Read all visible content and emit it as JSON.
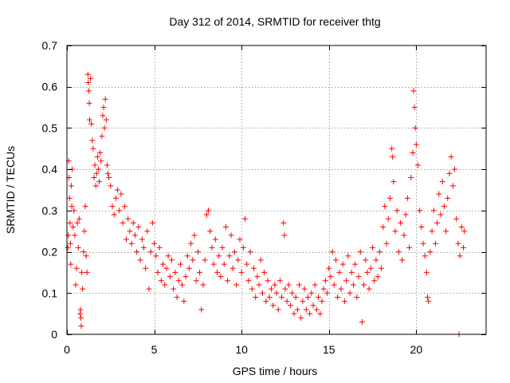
{
  "chart_data": {
    "type": "scatter",
    "title": "Day 312 of 2014, SRMTID for receiver thtg",
    "xlabel": "GPS time / hours",
    "ylabel": "SRMTID / TECUs",
    "xlim": [
      0,
      24
    ],
    "ylim": [
      0,
      0.7
    ],
    "xticks": [
      0,
      5,
      10,
      15,
      20
    ],
    "yticks": [
      0,
      0.1,
      0.2,
      0.3,
      0.4,
      0.5,
      0.6,
      0.7
    ],
    "grid": true,
    "marker": "plus",
    "color": "#ff0000",
    "series": [
      {
        "name": "SRMTID",
        "points": [
          [
            0.05,
            0.21
          ],
          [
            0.08,
            0.24
          ],
          [
            0.1,
            0.42
          ],
          [
            0.12,
            0.38
          ],
          [
            0.15,
            0.33
          ],
          [
            0.18,
            0.27
          ],
          [
            0.2,
            0.22
          ],
          [
            0.22,
            0.17
          ],
          [
            0.25,
            0.36
          ],
          [
            0.28,
            0.31
          ],
          [
            0.3,
            0.4
          ],
          [
            0.35,
            0.26
          ],
          [
            0.4,
            0.3
          ],
          [
            0.45,
            0.24
          ],
          [
            0.5,
            0.12
          ],
          [
            0.55,
            0.16
          ],
          [
            0.6,
            0.27
          ],
          [
            0.65,
            0.21
          ],
          [
            0.7,
            0.28
          ],
          [
            0.75,
            0.05
          ],
          [
            0.78,
            0.06
          ],
          [
            0.8,
            0.04
          ],
          [
            0.82,
            0.02
          ],
          [
            0.85,
            0.15
          ],
          [
            0.9,
            0.11
          ],
          [
            0.95,
            0.2
          ],
          [
            1.0,
            0.25
          ],
          [
            1.05,
            0.31
          ],
          [
            1.1,
            0.19
          ],
          [
            1.15,
            0.15
          ],
          [
            1.2,
            0.63
          ],
          [
            1.22,
            0.61
          ],
          [
            1.25,
            0.59
          ],
          [
            1.28,
            0.56
          ],
          [
            1.3,
            0.52
          ],
          [
            1.35,
            0.62
          ],
          [
            1.4,
            0.51
          ],
          [
            1.45,
            0.47
          ],
          [
            1.5,
            0.45
          ],
          [
            1.55,
            0.38
          ],
          [
            1.6,
            0.41
          ],
          [
            1.65,
            0.36
          ],
          [
            1.7,
            0.39
          ],
          [
            1.75,
            0.43
          ],
          [
            1.8,
            0.4
          ],
          [
            1.85,
            0.37
          ],
          [
            1.9,
            0.44
          ],
          [
            1.95,
            0.42
          ],
          [
            2.0,
            0.48
          ],
          [
            2.05,
            0.53
          ],
          [
            2.1,
            0.55
          ],
          [
            2.15,
            0.5
          ],
          [
            2.2,
            0.57
          ],
          [
            2.25,
            0.52
          ],
          [
            2.3,
            0.41
          ],
          [
            2.35,
            0.39
          ],
          [
            2.4,
            0.38
          ],
          [
            2.5,
            0.36
          ],
          [
            2.6,
            0.31
          ],
          [
            2.7,
            0.29
          ],
          [
            2.8,
            0.33
          ],
          [
            2.9,
            0.35
          ],
          [
            3.0,
            0.3
          ],
          [
            3.1,
            0.34
          ],
          [
            3.2,
            0.27
          ],
          [
            3.3,
            0.31
          ],
          [
            3.4,
            0.23
          ],
          [
            3.5,
            0.28
          ],
          [
            3.6,
            0.25
          ],
          [
            3.7,
            0.22
          ],
          [
            3.8,
            0.27
          ],
          [
            3.9,
            0.24
          ],
          [
            4.0,
            0.2
          ],
          [
            4.1,
            0.26
          ],
          [
            4.2,
            0.18
          ],
          [
            4.3,
            0.23
          ],
          [
            4.4,
            0.21
          ],
          [
            4.5,
            0.16
          ],
          [
            4.6,
            0.25
          ],
          [
            4.7,
            0.11
          ],
          [
            4.8,
            0.2
          ],
          [
            4.9,
            0.27
          ],
          [
            5.0,
            0.22
          ],
          [
            5.1,
            0.19
          ],
          [
            5.2,
            0.15
          ],
          [
            5.3,
            0.21
          ],
          [
            5.4,
            0.13
          ],
          [
            5.5,
            0.17
          ],
          [
            5.6,
            0.12
          ],
          [
            5.7,
            0.16
          ],
          [
            5.8,
            0.19
          ],
          [
            5.9,
            0.14
          ],
          [
            6.0,
            0.18
          ],
          [
            6.1,
            0.11
          ],
          [
            6.2,
            0.15
          ],
          [
            6.3,
            0.09
          ],
          [
            6.4,
            0.13
          ],
          [
            6.5,
            0.17
          ],
          [
            6.6,
            0.12
          ],
          [
            6.7,
            0.08
          ],
          [
            6.8,
            0.14
          ],
          [
            6.9,
            0.19
          ],
          [
            7.0,
            0.16
          ],
          [
            7.1,
            0.22
          ],
          [
            7.2,
            0.18
          ],
          [
            7.3,
            0.24
          ],
          [
            7.4,
            0.13
          ],
          [
            7.5,
            0.2
          ],
          [
            7.6,
            0.15
          ],
          [
            7.7,
            0.06
          ],
          [
            7.8,
            0.12
          ],
          [
            7.9,
            0.18
          ],
          [
            8.0,
            0.29
          ],
          [
            8.1,
            0.3
          ],
          [
            8.2,
            0.25
          ],
          [
            8.3,
            0.21
          ],
          [
            8.4,
            0.17
          ],
          [
            8.5,
            0.23
          ],
          [
            8.6,
            0.15
          ],
          [
            8.7,
            0.19
          ],
          [
            8.8,
            0.14
          ],
          [
            8.9,
            0.21
          ],
          [
            9.0,
            0.17
          ],
          [
            9.1,
            0.26
          ],
          [
            9.2,
            0.13
          ],
          [
            9.3,
            0.19
          ],
          [
            9.4,
            0.24
          ],
          [
            9.5,
            0.16
          ],
          [
            9.6,
            0.2
          ],
          [
            9.7,
            0.12
          ],
          [
            9.8,
            0.18
          ],
          [
            9.9,
            0.23
          ],
          [
            10.0,
            0.15
          ],
          [
            10.1,
            0.21
          ],
          [
            10.2,
            0.28
          ],
          [
            10.3,
            0.17
          ],
          [
            10.4,
            0.13
          ],
          [
            10.5,
            0.2
          ],
          [
            10.6,
            0.11
          ],
          [
            10.7,
            0.16
          ],
          [
            10.8,
            0.09
          ],
          [
            10.9,
            0.14
          ],
          [
            11.0,
            0.12
          ],
          [
            11.1,
            0.18
          ],
          [
            11.2,
            0.1
          ],
          [
            11.3,
            0.15
          ],
          [
            11.4,
            0.08
          ],
          [
            11.5,
            0.13
          ],
          [
            11.6,
            0.09
          ],
          [
            11.7,
            0.11
          ],
          [
            11.8,
            0.07
          ],
          [
            11.9,
            0.12
          ],
          [
            12.0,
            0.1
          ],
          [
            12.1,
            0.06
          ],
          [
            12.2,
            0.13
          ],
          [
            12.3,
            0.09
          ],
          [
            12.4,
            0.27
          ],
          [
            12.45,
            0.24
          ],
          [
            12.5,
            0.11
          ],
          [
            12.6,
            0.08
          ],
          [
            12.7,
            0.12
          ],
          [
            12.8,
            0.07
          ],
          [
            12.9,
            0.1
          ],
          [
            13.0,
            0.05
          ],
          [
            13.1,
            0.09
          ],
          [
            13.2,
            0.06
          ],
          [
            13.3,
            0.12
          ],
          [
            13.4,
            0.04
          ],
          [
            13.5,
            0.08
          ],
          [
            13.6,
            0.11
          ],
          [
            13.7,
            0.06
          ],
          [
            13.8,
            0.09
          ],
          [
            13.9,
            0.05
          ],
          [
            14.0,
            0.1
          ],
          [
            14.1,
            0.07
          ],
          [
            14.2,
            0.12
          ],
          [
            14.3,
            0.06
          ],
          [
            14.4,
            0.09
          ],
          [
            14.5,
            0.05
          ],
          [
            14.6,
            0.08
          ],
          [
            14.7,
            0.11
          ],
          [
            14.8,
            0.13
          ],
          [
            14.9,
            0.1
          ],
          [
            15.0,
            0.16
          ],
          [
            15.1,
            0.14
          ],
          [
            15.2,
            0.2
          ],
          [
            15.3,
            0.12
          ],
          [
            15.4,
            0.18
          ],
          [
            15.5,
            0.09
          ],
          [
            15.6,
            0.15
          ],
          [
            15.7,
            0.11
          ],
          [
            15.8,
            0.17
          ],
          [
            15.9,
            0.08
          ],
          [
            16.0,
            0.13
          ],
          [
            16.1,
            0.19
          ],
          [
            16.2,
            0.1
          ],
          [
            16.3,
            0.15
          ],
          [
            16.4,
            0.12
          ],
          [
            16.5,
            0.17
          ],
          [
            16.6,
            0.09
          ],
          [
            16.7,
            0.14
          ],
          [
            16.8,
            0.2
          ],
          [
            16.9,
            0.03
          ],
          [
            17.0,
            0.12
          ],
          [
            17.1,
            0.18
          ],
          [
            17.2,
            0.15
          ],
          [
            17.3,
            0.11
          ],
          [
            17.4,
            0.16
          ],
          [
            17.5,
            0.21
          ],
          [
            17.6,
            0.13
          ],
          [
            17.7,
            0.18
          ],
          [
            17.8,
            0.14
          ],
          [
            17.9,
            0.2
          ],
          [
            18.0,
            0.16
          ],
          [
            18.1,
            0.26
          ],
          [
            18.2,
            0.31
          ],
          [
            18.3,
            0.22
          ],
          [
            18.4,
            0.28
          ],
          [
            18.5,
            0.33
          ],
          [
            18.6,
            0.45
          ],
          [
            18.65,
            0.43
          ],
          [
            18.7,
            0.37
          ],
          [
            18.8,
            0.25
          ],
          [
            18.9,
            0.3
          ],
          [
            19.0,
            0.2
          ],
          [
            19.1,
            0.27
          ],
          [
            19.2,
            0.18
          ],
          [
            19.3,
            0.24
          ],
          [
            19.4,
            0.29
          ],
          [
            19.5,
            0.33
          ],
          [
            19.6,
            0.21
          ],
          [
            19.7,
            0.38
          ],
          [
            19.8,
            0.44
          ],
          [
            19.85,
            0.59
          ],
          [
            19.9,
            0.55
          ],
          [
            19.95,
            0.5
          ],
          [
            20.0,
            0.46
          ],
          [
            20.1,
            0.41
          ],
          [
            20.2,
            0.3
          ],
          [
            20.3,
            0.26
          ],
          [
            20.4,
            0.22
          ],
          [
            20.5,
            0.19
          ],
          [
            20.6,
            0.15
          ],
          [
            20.65,
            0.09
          ],
          [
            20.7,
            0.08
          ],
          [
            20.8,
            0.2
          ],
          [
            20.9,
            0.25
          ],
          [
            21.0,
            0.3
          ],
          [
            21.1,
            0.22
          ],
          [
            21.2,
            0.27
          ],
          [
            21.3,
            0.34
          ],
          [
            21.4,
            0.29
          ],
          [
            21.5,
            0.37
          ],
          [
            21.6,
            0.31
          ],
          [
            21.7,
            0.25
          ],
          [
            21.8,
            0.33
          ],
          [
            21.9,
            0.39
          ],
          [
            22.0,
            0.43
          ],
          [
            22.1,
            0.36
          ],
          [
            22.2,
            0.4
          ],
          [
            22.3,
            0.28
          ],
          [
            22.4,
            0.22
          ],
          [
            22.45,
            0.0
          ],
          [
            22.5,
            0.19
          ],
          [
            22.6,
            0.26
          ],
          [
            22.7,
            0.21
          ],
          [
            22.75,
            0.25
          ]
        ]
      }
    ]
  }
}
